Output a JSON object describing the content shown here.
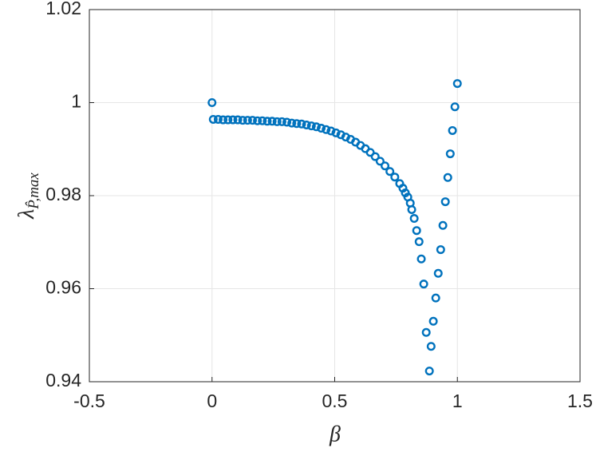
{
  "chart_data": {
    "type": "scatter",
    "xlabel": "β",
    "ylabel": {
      "main": "λ",
      "sub": "P̂,max"
    },
    "xlim": [
      -0.5,
      1.5
    ],
    "xticks": [
      -0.5,
      0,
      0.5,
      1,
      1.5
    ],
    "ylim": [
      0.94,
      1.02
    ],
    "yticks": [
      0.94,
      0.96,
      0.98,
      1,
      1.02
    ],
    "grid": true,
    "series": [
      {
        "color": "#0072bd",
        "x": [
          0,
          0.005,
          0.025,
          0.045,
          0.065,
          0.085,
          0.105,
          0.125,
          0.145,
          0.165,
          0.185,
          0.205,
          0.225,
          0.245,
          0.265,
          0.285,
          0.305,
          0.325,
          0.345,
          0.365,
          0.385,
          0.405,
          0.425,
          0.445,
          0.465,
          0.485,
          0.505,
          0.525,
          0.545,
          0.565,
          0.585,
          0.605,
          0.625,
          0.645,
          0.665,
          0.685,
          0.705,
          0.725,
          0.745,
          0.765,
          0.778,
          0.788,
          0.798,
          0.808,
          0.814,
          0.824,
          0.834,
          0.844,
          0.853,
          0.863,
          0.873,
          0.886,
          0.893,
          0.902,
          0.912,
          0.922,
          0.932,
          0.941,
          0.951,
          0.961,
          0.971,
          0.98,
          0.99,
          1.0
        ],
        "y": [
          1.0,
          0.9964,
          0.9964,
          0.9963,
          0.9963,
          0.9963,
          0.9963,
          0.9962,
          0.9962,
          0.9962,
          0.9961,
          0.9961,
          0.996,
          0.996,
          0.9959,
          0.9959,
          0.9958,
          0.9956,
          0.9955,
          0.9954,
          0.9952,
          0.995,
          0.9948,
          0.9945,
          0.9942,
          0.9939,
          0.9935,
          0.9931,
          0.9926,
          0.9921,
          0.9915,
          0.9908,
          0.9901,
          0.9893,
          0.9884,
          0.9874,
          0.9864,
          0.9852,
          0.984,
          0.9826,
          0.9816,
          0.9806,
          0.9797,
          0.9784,
          0.977,
          0.9751,
          0.9725,
          0.9701,
          0.9664,
          0.961,
          0.9506,
          0.9423,
          0.9476,
          0.953,
          0.958,
          0.9633,
          0.9684,
          0.9736,
          0.9787,
          0.9839,
          0.989,
          0.994,
          0.9991,
          1.0041
        ]
      }
    ]
  }
}
